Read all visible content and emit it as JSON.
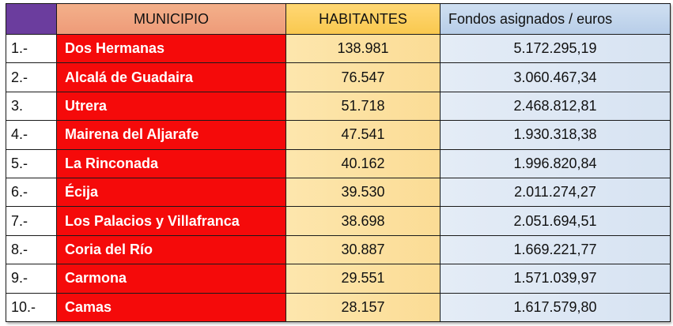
{
  "header": {
    "num": "",
    "municipio": "MUNICIPIO",
    "habitantes": "HABITANTES",
    "fondos": "Fondos asignados / euros"
  },
  "rows": [
    {
      "num": "1.-",
      "municipio": "Dos Hermanas",
      "habitantes": "138.981",
      "fondos": "5.172.295,19"
    },
    {
      "num": "2.-",
      "municipio": "Alcalá de Guadaira",
      "habitantes": "76.547",
      "fondos": "3.060.467,34"
    },
    {
      "num": "3.",
      "municipio": "Utrera",
      "habitantes": "51.718",
      "fondos": "2.468.812,81"
    },
    {
      "num": "4.-",
      "municipio": "Mairena del Aljarafe",
      "habitantes": "47.541",
      "fondos": "1.930.318,38"
    },
    {
      "num": "5.-",
      "municipio": "La Rinconada",
      "habitantes": "40.162",
      "fondos": "1.996.820,84"
    },
    {
      "num": "6.-",
      "municipio": "Écija",
      "habitantes": "39.530",
      "fondos": "2.011.274,27"
    },
    {
      "num": "7.-",
      "municipio": "Los Palacios y Villafranca",
      "habitantes": "38.698",
      "fondos": "2.051.694,51"
    },
    {
      "num": "8.-",
      "municipio": "Coria del Río",
      "habitantes": "30.887",
      "fondos": "1.669.221,77"
    },
    {
      "num": "9.-",
      "municipio": "Carmona",
      "habitantes": "29.551",
      "fondos": "1.571.039,97"
    },
    {
      "num": "10.-",
      "municipio": "Camas",
      "habitantes": "28.157",
      "fondos": "1.617.579,80"
    }
  ],
  "colors": {
    "header_num": "#6b3d9e",
    "header_municipio": "#ee9a78",
    "header_habitantes": "#f9c84e",
    "header_fondos": "#b7cde8",
    "municipio_cell": "#f50a0a",
    "habitantes_cell": "#fbdc95",
    "fondos_cell": "#d7e3f2"
  }
}
